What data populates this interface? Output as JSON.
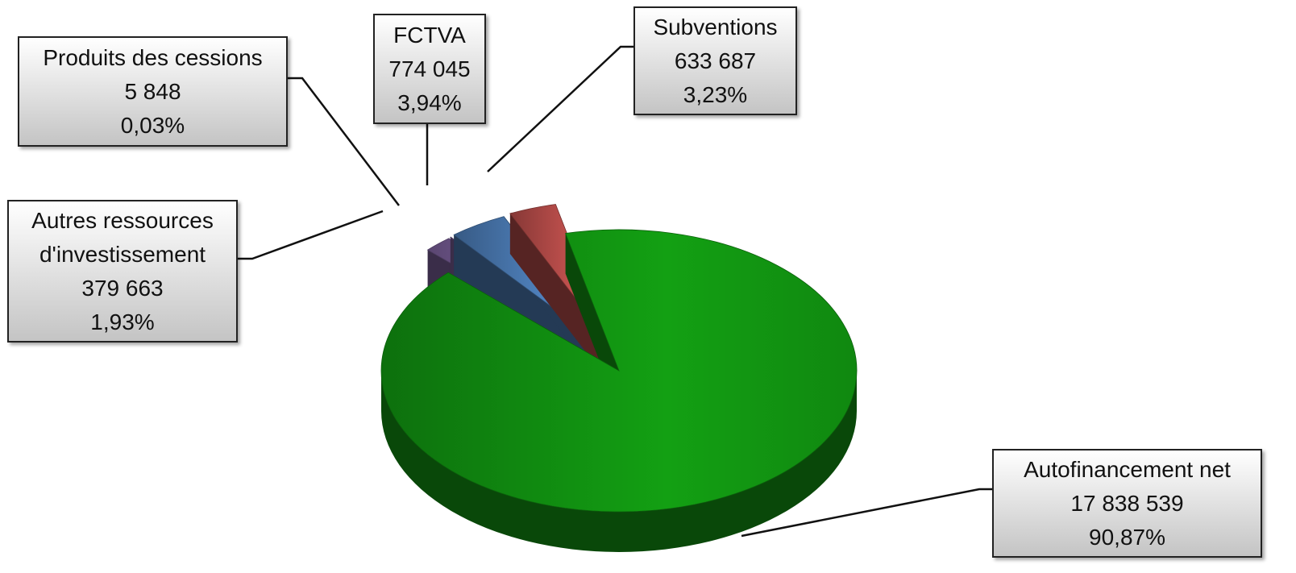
{
  "chart_data": {
    "type": "pie",
    "categories": [
      "Autofinancement net",
      "Autres ressources d'investissement",
      "Produits des cessions",
      "FCTVA",
      "Subventions"
    ],
    "values": [
      17838539,
      379663,
      5848,
      774045,
      633687
    ],
    "value_labels": [
      "17 838 539",
      "379 663",
      "5 848",
      "774 045",
      "633 687"
    ],
    "percentages": [
      90.87,
      1.93,
      0.03,
      3.94,
      3.23
    ],
    "percentage_labels": [
      "90,87%",
      "1,93%",
      "0,03%",
      "3,94%",
      "3,23%"
    ],
    "colors": [
      "#13a013",
      "#8064a2",
      "#8064a2",
      "#4f81bd",
      "#c0504d"
    ]
  }
}
